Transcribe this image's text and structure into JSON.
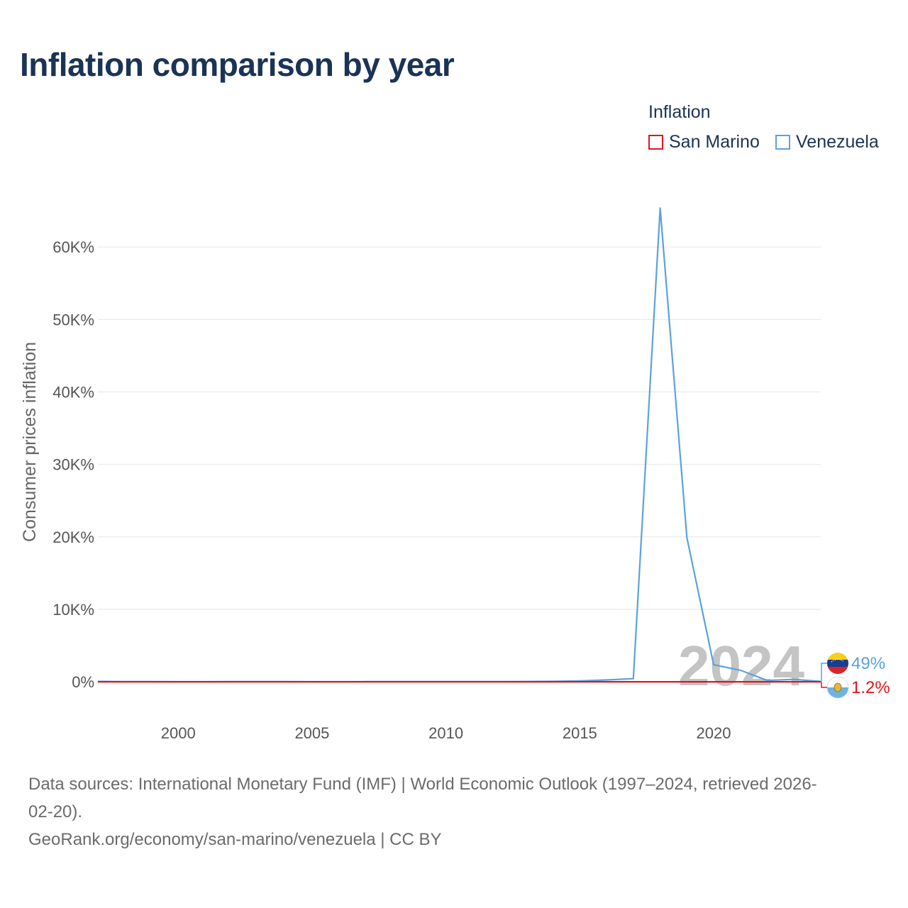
{
  "title": "Inflation comparison by year",
  "legend": {
    "title": "Inflation",
    "items": [
      {
        "name": "San Marino",
        "color": "#e0161c"
      },
      {
        "name": "Venezuela",
        "color": "#5aa2df"
      }
    ]
  },
  "colors": {
    "grid": "#e6e6e6",
    "tick": "#555555",
    "watermark": "#c4c4c4"
  },
  "end_labels": {
    "venezuela": "49%",
    "san_marino": "1.2%"
  },
  "watermark_year": "2024",
  "footer": {
    "line1": "Data sources: International Monetary Fund (IMF) | World Economic Outlook (1997–2024, retrieved 2026-",
    "line2": "02-20).",
    "line3": "GeoRank.org/economy/san-marino/venezuela | CC BY"
  },
  "chart_data": {
    "type": "line",
    "title": "Inflation comparison by year",
    "xlabel": "",
    "ylabel": "Consumer prices inflation",
    "xlim": [
      1997,
      2024
    ],
    "ylim": [
      -4000,
      70000
    ],
    "x_ticks": [
      2000,
      2005,
      2010,
      2015,
      2020
    ],
    "x_tick_labels": [
      "2000",
      "2005",
      "2010",
      "2015",
      "2020"
    ],
    "y_ticks": [
      0,
      10000,
      20000,
      30000,
      40000,
      50000,
      60000
    ],
    "y_tick_labels": [
      "0%",
      "10K%",
      "20K%",
      "30K%",
      "40K%",
      "50K%",
      "60K%"
    ],
    "x": [
      1997,
      1998,
      1999,
      2000,
      2001,
      2002,
      2003,
      2004,
      2005,
      2006,
      2007,
      2008,
      2009,
      2010,
      2011,
      2012,
      2013,
      2014,
      2015,
      2016,
      2017,
      2018,
      2019,
      2020,
      2021,
      2022,
      2023,
      2024
    ],
    "series": [
      {
        "name": "Venezuela",
        "color": "#5aa2df",
        "values": [
          50,
          36,
          24,
          16,
          13,
          22,
          31,
          22,
          16,
          14,
          19,
          31,
          27,
          28,
          26,
          21,
          41,
          62,
          122,
          255,
          438,
          65374,
          19906,
          2355,
          1588,
          186,
          337,
          49
        ]
      },
      {
        "name": "San Marino",
        "color": "#e0161c",
        "values": [
          2.0,
          2.1,
          2.4,
          2.6,
          2.6,
          2.5,
          2.6,
          2.7,
          2.3,
          2.3,
          2.6,
          3.2,
          2.1,
          2.6,
          2.0,
          2.8,
          1.3,
          1.1,
          0.1,
          0.6,
          1.0,
          1.5,
          1.0,
          0.2,
          2.1,
          5.3,
          5.9,
          1.2
        ]
      }
    ]
  }
}
